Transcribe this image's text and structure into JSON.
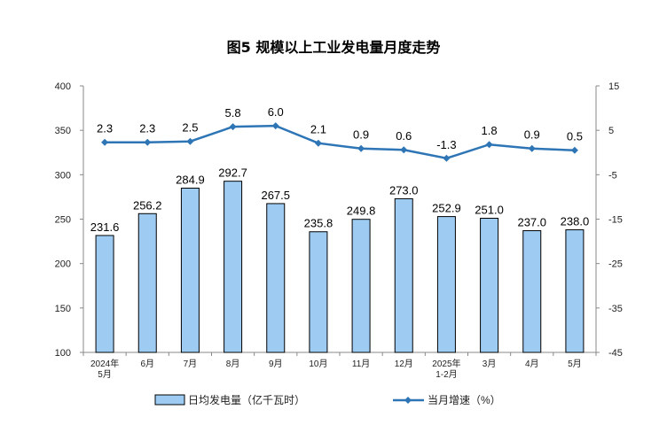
{
  "chart_data": {
    "type": "bar+line",
    "title": "图5  规模以上工业发电量月度走势",
    "categories": [
      "2024年\n5月",
      "6月",
      "7月",
      "8月",
      "9月",
      "10月",
      "11月",
      "12月",
      "2025年\n1-2月",
      "3月",
      "4月",
      "5月"
    ],
    "series": [
      {
        "name": "日均发电量（亿千瓦时）",
        "type": "bar",
        "axis": "left",
        "color": "#9DCBF2",
        "values": [
          231.6,
          256.2,
          284.9,
          292.7,
          267.5,
          235.8,
          249.8,
          273.0,
          252.9,
          251.0,
          237.0,
          238.0
        ],
        "labels": [
          "231.6",
          "256.2",
          "284.9",
          "292.7",
          "267.5",
          "235.8",
          "249.8",
          "273.0",
          "252.9",
          "251.0",
          "237.0",
          "238.0"
        ]
      },
      {
        "name": "当月增速（%）",
        "type": "line",
        "axis": "right",
        "color": "#2E75B6",
        "values": [
          2.3,
          2.3,
          2.5,
          5.8,
          6.0,
          2.1,
          0.9,
          0.6,
          -1.3,
          1.8,
          0.9,
          0.5
        ],
        "labels": [
          "2.3",
          "2.3",
          "2.5",
          "5.8",
          "6.0",
          "2.1",
          "0.9",
          "0.6",
          "-1.3",
          "1.8",
          "0.9",
          "0.5"
        ]
      }
    ],
    "left_axis": {
      "min": 100,
      "max": 400,
      "step": 50,
      "ticks": [
        "100",
        "150",
        "200",
        "250",
        "300",
        "350",
        "400"
      ]
    },
    "right_axis": {
      "min": -45,
      "max": 15,
      "step": 10,
      "ticks": [
        "-45",
        "-35",
        "-25",
        "-15",
        "-5",
        "5",
        "15"
      ]
    },
    "grid": false,
    "legend_position": "bottom"
  }
}
